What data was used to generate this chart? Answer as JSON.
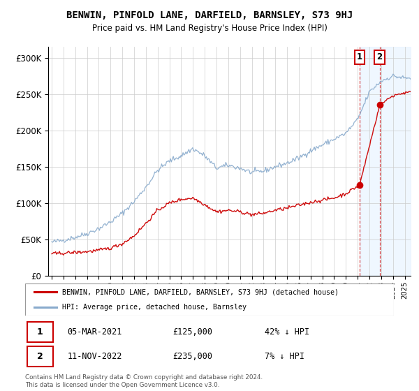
{
  "title": "BENWIN, PINFOLD LANE, DARFIELD, BARNSLEY, S73 9HJ",
  "subtitle": "Price paid vs. HM Land Registry's House Price Index (HPI)",
  "legend_line1": "BENWIN, PINFOLD LANE, DARFIELD, BARNSLEY, S73 9HJ (detached house)",
  "legend_line2": "HPI: Average price, detached house, Barnsley",
  "footer": "Contains HM Land Registry data © Crown copyright and database right 2024.\nThis data is licensed under the Open Government Licence v3.0.",
  "sale1_date": "05-MAR-2021",
  "sale1_price": 125000,
  "sale1_label": "42% ↓ HPI",
  "sale1_year": 2021.17,
  "sale2_date": "11-NOV-2022",
  "sale2_price": 235000,
  "sale2_label": "7% ↓ HPI",
  "sale2_year": 2022.87,
  "red_color": "#cc0000",
  "blue_color": "#88aacc",
  "ylim_max": 315000,
  "yticks": [
    0,
    50000,
    100000,
    150000,
    200000,
    250000,
    300000
  ],
  "hpi_anchor_years": [
    1995,
    1996,
    1997,
    1998,
    1999,
    2000,
    2001,
    2002,
    2003,
    2004,
    2005,
    2006,
    2007,
    2008,
    2009,
    2010,
    2011,
    2012,
    2013,
    2014,
    2015,
    2016,
    2017,
    2018,
    2019,
    2020,
    2021,
    2022,
    2023,
    2024,
    2025
  ],
  "hpi_anchor_vals": [
    46000,
    49000,
    53000,
    58000,
    65000,
    74000,
    86000,
    102000,
    122000,
    145000,
    158000,
    165000,
    175000,
    165000,
    148000,
    152000,
    148000,
    142000,
    144000,
    150000,
    155000,
    162000,
    172000,
    180000,
    188000,
    196000,
    215000,
    253000,
    268000,
    275000,
    272000
  ],
  "red_anchor_years": [
    1995,
    1996,
    1997,
    1998,
    1999,
    2000,
    2001,
    2002,
    2003,
    2004,
    2005,
    2006,
    2007,
    2008,
    2009,
    2010,
    2011,
    2012,
    2013,
    2014,
    2015,
    2016,
    2017,
    2018,
    2019,
    2020,
    2021.17,
    2022.87,
    2024,
    2025
  ],
  "red_anchor_vals": [
    30000,
    31000,
    32000,
    33000,
    35000,
    38000,
    44000,
    55000,
    72000,
    90000,
    100000,
    105000,
    107000,
    98000,
    88000,
    90000,
    88000,
    84000,
    86000,
    90000,
    93000,
    97000,
    101000,
    104000,
    107000,
    113000,
    125000,
    235000,
    248000,
    252000
  ]
}
